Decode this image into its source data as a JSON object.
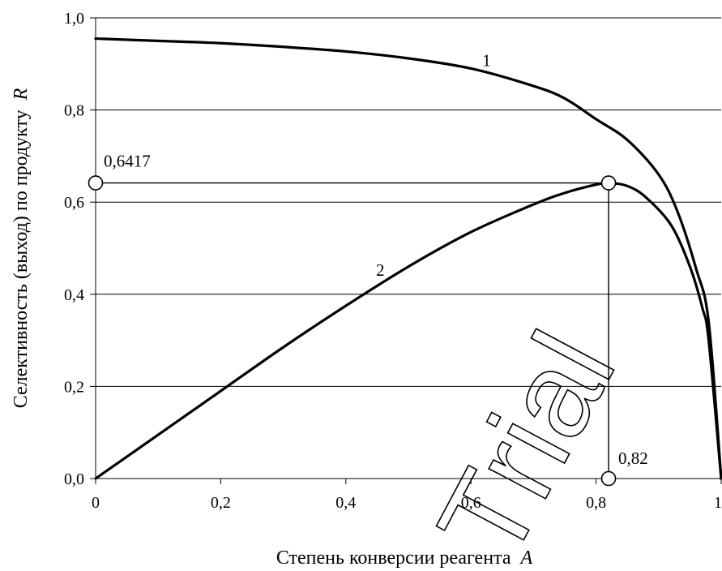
{
  "chart_data": {
    "type": "line",
    "title": "",
    "xlabel": "Степень конверсии реагента",
    "xlabel_var": "A",
    "ylabel": "Селективность (выход) по продукту",
    "ylabel_var": "R",
    "xlim": [
      0,
      1
    ],
    "ylim": [
      0,
      1
    ],
    "x_ticks": [
      {
        "value": 0,
        "label": "0"
      },
      {
        "value": 0.2,
        "label": "0,2"
      },
      {
        "value": 0.4,
        "label": "0,4"
      },
      {
        "value": 0.6,
        "label": "0,6"
      },
      {
        "value": 0.8,
        "label": "0,8"
      },
      {
        "value": 1,
        "label": "1"
      }
    ],
    "y_ticks": [
      {
        "value": 0,
        "label": "0,0"
      },
      {
        "value": 0.2,
        "label": "0,2"
      },
      {
        "value": 0.4,
        "label": "0,4"
      },
      {
        "value": 0.6,
        "label": "0,6"
      },
      {
        "value": 0.8,
        "label": "0,8"
      },
      {
        "value": 1,
        "label": "1,0"
      }
    ],
    "grid": "horizontal",
    "series": [
      {
        "name": "1",
        "x": [
          0,
          0.1,
          0.2,
          0.3,
          0.4,
          0.5,
          0.6,
          0.7,
          0.75,
          0.8,
          0.85,
          0.9,
          0.93,
          0.96,
          0.98,
          1.0
        ],
        "y": [
          0.955,
          0.95,
          0.945,
          0.937,
          0.927,
          0.912,
          0.89,
          0.852,
          0.825,
          0.78,
          0.735,
          0.66,
          0.58,
          0.455,
          0.34,
          0.0
        ]
      },
      {
        "name": "2",
        "x": [
          0,
          0.1,
          0.2,
          0.3,
          0.4,
          0.5,
          0.6,
          0.7,
          0.75,
          0.8,
          0.82,
          0.85,
          0.88,
          0.92,
          0.95,
          0.97,
          0.98,
          1.0
        ],
        "y": [
          0,
          0.095,
          0.19,
          0.285,
          0.375,
          0.46,
          0.535,
          0.595,
          0.62,
          0.638,
          0.6417,
          0.635,
          0.61,
          0.55,
          0.46,
          0.37,
          0.3,
          0.0
        ]
      }
    ],
    "annotations": [
      {
        "text": "0,6417",
        "x": 0,
        "y": 0.6417
      },
      {
        "text": "0,82",
        "x": 0.82,
        "y": 0
      }
    ],
    "markers": [
      {
        "x": 0,
        "y": 0.6417
      },
      {
        "x": 0.82,
        "y": 0.6417
      },
      {
        "x": 0.82,
        "y": 0
      }
    ],
    "reference_point": {
      "x": 0.82,
      "y": 0.6417
    },
    "watermark": "Trial"
  }
}
